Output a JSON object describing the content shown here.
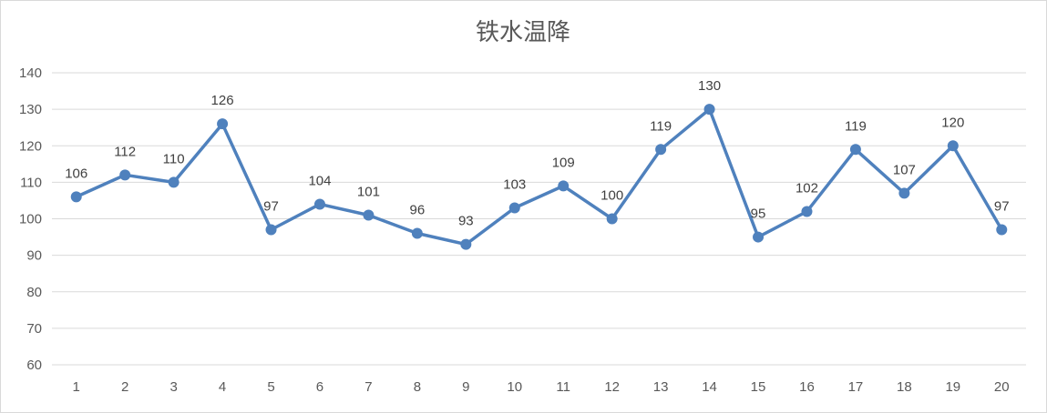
{
  "chart_data": {
    "type": "line",
    "title": "铁水温降",
    "xlabel": "",
    "ylabel": "",
    "categories": [
      "1",
      "2",
      "3",
      "4",
      "5",
      "6",
      "7",
      "8",
      "9",
      "10",
      "11",
      "12",
      "13",
      "14",
      "15",
      "16",
      "17",
      "18",
      "19",
      "20"
    ],
    "series": [
      {
        "values": [
          106,
          112,
          110,
          126,
          97,
          104,
          101,
          96,
          93,
          103,
          109,
          100,
          119,
          130,
          95,
          102,
          119,
          107,
          120,
          97
        ],
        "color": "#4f81bd"
      }
    ],
    "ylim": [
      60,
      140
    ],
    "yticks": [
      60,
      70,
      80,
      90,
      100,
      110,
      120,
      130,
      140
    ],
    "grid": true,
    "legend": "none",
    "data_labels": true
  }
}
